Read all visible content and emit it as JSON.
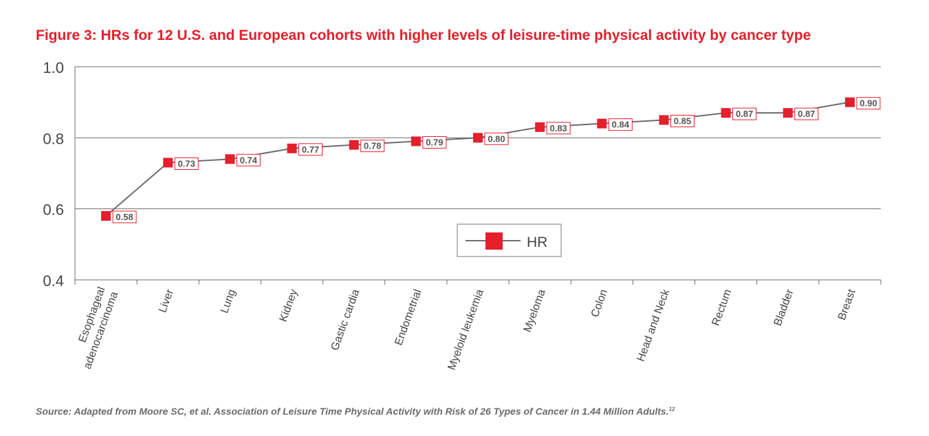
{
  "title": "Figure 3: HRs for 12 U.S. and European cohorts with higher levels of leisure-time physical activity by cancer type",
  "source": {
    "text": "Source: Adapted from Moore SC, et al. Association of Leisure Time Physical Activity with Risk of 26 Types of Cancer in 1.44 Million Adults.",
    "superscript": "12"
  },
  "chart_data": {
    "type": "line",
    "categories": [
      "Esophageal adenocarcinoma",
      "Liver",
      "Lung",
      "Kidney",
      "Gastic cardia",
      "Endometrial",
      "Myeloid leukemia",
      "Myeloma",
      "Colon",
      "Head and Neck",
      "Rectum",
      "Bladder",
      "Breast"
    ],
    "series": [
      {
        "name": "HR",
        "values": [
          0.58,
          0.73,
          0.74,
          0.77,
          0.78,
          0.79,
          0.8,
          0.83,
          0.84,
          0.85,
          0.87,
          0.87,
          0.9
        ]
      }
    ],
    "data_labels": [
      "0.58",
      "0.73",
      "0.74",
      "0.77",
      "0.78",
      "0.79",
      "0.80",
      "0.83",
      "0.84",
      "0.85",
      "0.87",
      "0.87",
      "0.90"
    ],
    "ylim": [
      0.4,
      1.0
    ],
    "yticks": [
      0.4,
      0.6,
      0.8,
      1.0
    ],
    "ytick_labels": [
      "0.4",
      "0.6",
      "0.8",
      "1.0"
    ],
    "grid": true,
    "legend_position": "center-right",
    "colors": {
      "marker": "#e3202b",
      "line": "#6d6d6d",
      "axis": "#6d6d6d",
      "grid": "#6d6d6d",
      "tick_label": "#444444"
    }
  }
}
